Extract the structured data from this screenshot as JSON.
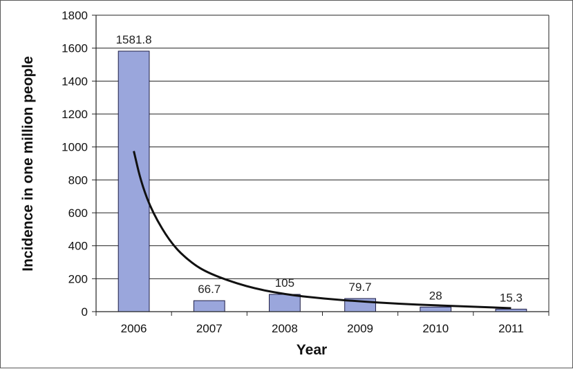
{
  "chart_data": {
    "type": "bar",
    "categories": [
      "2006",
      "2007",
      "2008",
      "2009",
      "2010",
      "2011"
    ],
    "values": [
      1581.8,
      66.7,
      105,
      79.7,
      28,
      15.3
    ],
    "data_labels": [
      "1581.8",
      "66.7",
      "105",
      "79.7",
      "28",
      "15.3"
    ],
    "xlabel": "Year",
    "ylabel": "Incidence in one million people",
    "ylim": [
      0,
      1800
    ],
    "yticks": [
      0,
      200,
      400,
      600,
      800,
      1000,
      1200,
      1400,
      1600,
      1800
    ],
    "grid": "horizontal",
    "bar_color": "#9aa6dc",
    "bar_edge_color": "#1c1c44",
    "trendline": {
      "type": "power",
      "color": "#111111",
      "x": [
        1,
        1.1,
        1.25,
        1.5,
        1.75,
        2,
        2.5,
        3,
        3.5,
        4,
        4.5,
        5,
        5.5,
        6
      ],
      "y": [
        975,
        780,
        600,
        410,
        300,
        230,
        150,
        105,
        80,
        62,
        48,
        38,
        30,
        21
      ]
    }
  }
}
